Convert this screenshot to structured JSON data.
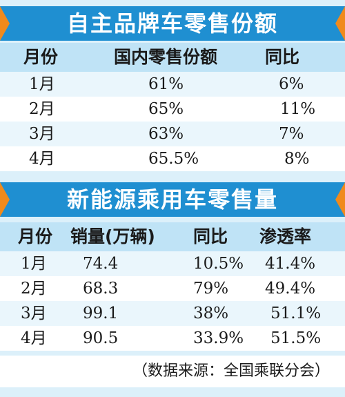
{
  "table1": {
    "title": "自主品牌车零售份额",
    "headers": [
      "月份",
      "国内零售份额",
      "同比"
    ],
    "rows": [
      [
        "1月",
        "61%",
        "6%"
      ],
      [
        "2月",
        "65%",
        "11%"
      ],
      [
        "3月",
        "63%",
        "7%"
      ],
      [
        "4月",
        "65.5%",
        "8%"
      ]
    ]
  },
  "table2": {
    "title": "新能源乘用车零售量",
    "headers": [
      "月份",
      "销量(万辆)",
      "同比",
      "渗透率"
    ],
    "rows": [
      [
        "1月",
        "74.4",
        "10.5%",
        "41.4%"
      ],
      [
        "2月",
        "68.3",
        "79%",
        "49.4%"
      ],
      [
        "3月",
        "99.1",
        "38%",
        "51.1%"
      ],
      [
        "4月",
        "90.5",
        "33.9%",
        "51.5%"
      ]
    ]
  },
  "source": "（数据来源：全国乘联分会）",
  "colors": {
    "banner": "#1f8fd1",
    "accent": "#f08a1c",
    "header_row": "#bfe3f6"
  }
}
